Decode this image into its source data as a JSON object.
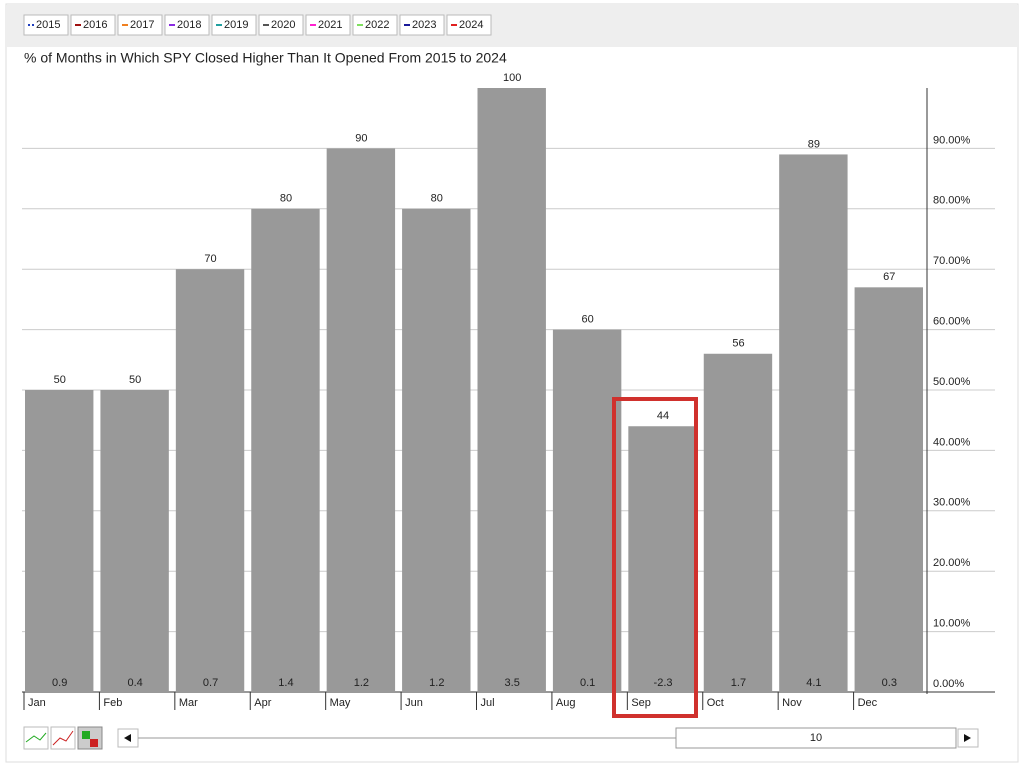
{
  "chart_data": {
    "type": "bar",
    "title": "% of Months in Which SPY Closed Higher Than It Opened From 2015 to 2024",
    "legend_items": [
      {
        "name": "2015",
        "color": "#1f3fbf"
      },
      {
        "name": "2016",
        "color": "#a01010"
      },
      {
        "name": "2017",
        "color": "#f08020"
      },
      {
        "name": "2018",
        "color": "#8a2be2"
      },
      {
        "name": "2019",
        "color": "#20a0a0"
      },
      {
        "name": "2020",
        "color": "#555555"
      },
      {
        "name": "2021",
        "color": "#ff20d0"
      },
      {
        "name": "2022",
        "color": "#80e060"
      },
      {
        "name": "2023",
        "color": "#1a1a9a"
      },
      {
        "name": "2024",
        "color": "#e02020"
      }
    ],
    "categories": [
      "Jan",
      "Feb",
      "Mar",
      "Apr",
      "May",
      "Jun",
      "Jul",
      "Aug",
      "Sep",
      "Oct",
      "Nov",
      "Dec"
    ],
    "values": [
      50,
      50,
      70,
      80,
      90,
      80,
      100,
      60,
      44,
      56,
      89,
      67
    ],
    "returns": [
      0.9,
      0.4,
      0.7,
      1.4,
      1.2,
      1.2,
      3.5,
      0.1,
      -2.3,
      1.7,
      4.1,
      0.3
    ],
    "color": "#999999",
    "ylim": [
      0,
      100
    ],
    "yticks": [
      {
        "value": 0,
        "label": "0.00%"
      },
      {
        "value": 10,
        "label": "10.00%"
      },
      {
        "value": 20,
        "label": "20.00%"
      },
      {
        "value": 30,
        "label": "30.00%"
      },
      {
        "value": 40,
        "label": "40.00%"
      },
      {
        "value": 50,
        "label": "50.00%"
      },
      {
        "value": 60,
        "label": "60.00%"
      },
      {
        "value": 70,
        "label": "70.00%"
      },
      {
        "value": 80,
        "label": "80.00%"
      },
      {
        "value": 90,
        "label": "90.00%"
      }
    ],
    "grid": true,
    "scroll_value": "10"
  }
}
